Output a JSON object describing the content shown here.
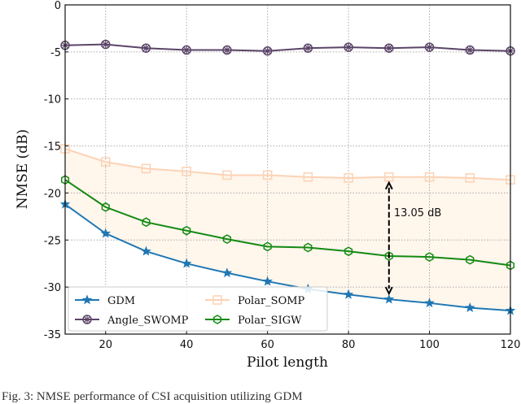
{
  "chart_data": {
    "type": "line",
    "title": "",
    "xlabel": "Pilot length",
    "ylabel": "NMSE (dB)",
    "xlim": [
      10,
      120
    ],
    "ylim": [
      -35,
      0
    ],
    "xticks": [
      20,
      40,
      60,
      80,
      100,
      120
    ],
    "yticks": [
      0,
      -5,
      -10,
      -15,
      -20,
      -25,
      -30,
      -35
    ],
    "grid": true,
    "legend_position": "bottom-left",
    "x": [
      10,
      20,
      30,
      40,
      50,
      60,
      70,
      80,
      90,
      100,
      110,
      120
    ],
    "series": [
      {
        "name": "GDM",
        "color": "#1f77b4",
        "marker": "star",
        "values": [
          -21.2,
          -24.3,
          -26.2,
          -27.5,
          -28.5,
          -29.4,
          -30.2,
          -30.8,
          -31.3,
          -31.7,
          -32.2,
          -32.5
        ]
      },
      {
        "name": "Angle_SWOMP",
        "color": "#5b4468",
        "marker": "circle-x",
        "values": [
          -4.3,
          -4.2,
          -4.6,
          -4.8,
          -4.8,
          -4.9,
          -4.6,
          -4.5,
          -4.6,
          -4.5,
          -4.8,
          -4.9
        ]
      },
      {
        "name": "Polar_SOMP",
        "color": "#fcd2b4",
        "marker": "square",
        "values": [
          -15.3,
          -16.7,
          -17.4,
          -17.7,
          -18.1,
          -18.1,
          -18.3,
          -18.4,
          -18.3,
          -18.3,
          -18.4,
          -18.6
        ]
      },
      {
        "name": "Polar_SIGW",
        "color": "#138a13",
        "marker": "hexagon",
        "values": [
          -18.6,
          -21.5,
          -23.1,
          -24.0,
          -24.9,
          -25.7,
          -25.8,
          -26.2,
          -26.7,
          -26.8,
          -27.1,
          -27.7
        ]
      }
    ],
    "shaded_region": {
      "between": [
        "Polar_SOMP",
        "GDM"
      ],
      "color": "#fff6ec"
    },
    "annotation": {
      "text": "13.05 dB",
      "x": 90,
      "from": -18.3,
      "to": -31.3
    }
  },
  "caption": "Fig. 3: NMSE performance of CSI acquisition utilizing GDM"
}
